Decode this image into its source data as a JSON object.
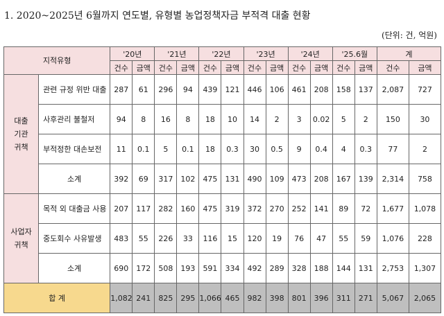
{
  "header": {
    "title": "1. 2020~2025년 6월까지 연도별, 유형별 농업정책자금 부적격 대출 현황",
    "unit": "(단위: 건, 억원)"
  },
  "table": {
    "corner": "지적유형",
    "years": [
      "'20년",
      "'21년",
      "'22년",
      "'23년",
      "'24년",
      "'25.6월",
      "계"
    ],
    "subheads": [
      "건수",
      "금액",
      "건수",
      "금액",
      "건수",
      "금액",
      "건수",
      "금액",
      "건수",
      "금액",
      "건수",
      "금액",
      "건수",
      "금액"
    ],
    "groups": [
      {
        "label": "대출\n기관\n귀책",
        "rows": [
          {
            "label": "관련 규정 위반 대출",
            "values": [
              "287",
              "61",
              "296",
              "94",
              "439",
              "121",
              "446",
              "106",
              "461",
              "208",
              "158",
              "137",
              "2,087",
              "727"
            ]
          },
          {
            "label": "사후관리 불철저",
            "values": [
              "94",
              "8",
              "16",
              "8",
              "18",
              "10",
              "14",
              "2",
              "3",
              "0.02",
              "5",
              "2",
              "150",
              "30"
            ]
          },
          {
            "label": "부적정한 대손보전",
            "values": [
              "11",
              "0.1",
              "5",
              "0.1",
              "18",
              "0.3",
              "30",
              "0.5",
              "9",
              "0.4",
              "4",
              "0.3",
              "77",
              "2"
            ]
          },
          {
            "label": "소계",
            "values": [
              "392",
              "69",
              "317",
              "102",
              "475",
              "131",
              "490",
              "109",
              "473",
              "208",
              "167",
              "139",
              "2,314",
              "758"
            ]
          }
        ]
      },
      {
        "label": "사업자\n귀책",
        "rows": [
          {
            "label": "목적 외 대출금 사용",
            "values": [
              "207",
              "117",
              "282",
              "160",
              "475",
              "319",
              "372",
              "270",
              "252",
              "141",
              "89",
              "72",
              "1,677",
              "1,078"
            ]
          },
          {
            "label": "중도회수 사유발생",
            "values": [
              "483",
              "55",
              "226",
              "33",
              "116",
              "15",
              "120",
              "19",
              "76",
              "47",
              "55",
              "59",
              "1,076",
              "228"
            ]
          },
          {
            "label": "소계",
            "values": [
              "690",
              "172",
              "508",
              "193",
              "591",
              "334",
              "492",
              "289",
              "328",
              "188",
              "144",
              "131",
              "2,753",
              "1,307"
            ]
          }
        ]
      }
    ],
    "total": {
      "label": "합 계",
      "values": [
        "1,082",
        "241",
        "825",
        "295",
        "1,066",
        "465",
        "982",
        "398",
        "801",
        "396",
        "311",
        "271",
        "5,067",
        "2,065"
      ]
    }
  }
}
